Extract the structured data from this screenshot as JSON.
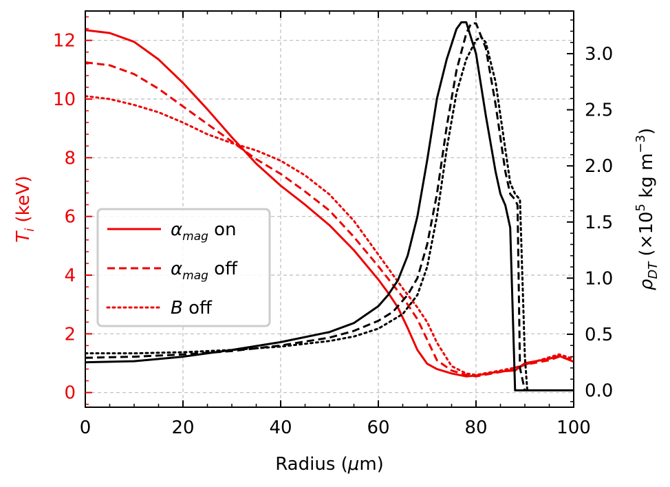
{
  "chart_data": {
    "type": "line",
    "xlabel": "Radius (μm)",
    "xlim": [
      0,
      100
    ],
    "x_ticks": [
      0,
      20,
      40,
      60,
      80,
      100
    ],
    "left_axis": {
      "label": "T_i (keV)",
      "color": "#ee0000",
      "ylim": [
        -0.5,
        13.0
      ],
      "ticks": [
        0,
        2,
        4,
        6,
        8,
        10,
        12
      ]
    },
    "right_axis": {
      "label": "ρ_DT (×10^5 kg m^−3)",
      "color": "#000000",
      "ylim": [
        -0.15,
        3.38
      ],
      "ticks": [
        0.0,
        0.5,
        1.0,
        1.5,
        2.0,
        2.5,
        3.0
      ],
      "tick_labels": [
        "0.0",
        "0.5",
        "1.0",
        "1.5",
        "2.0",
        "2.5",
        "3.0"
      ]
    },
    "grid": true,
    "legend": {
      "position": "center-left",
      "entries": [
        {
          "symbol": "α",
          "sub": "mag",
          "text": "on",
          "style": "solid"
        },
        {
          "symbol": "α",
          "sub": "mag",
          "text": "off",
          "style": "dashed"
        },
        {
          "symbol": "B",
          "sub": "",
          "text": "off",
          "style": "dotted"
        }
      ]
    },
    "series": [
      {
        "name": "T_i α_mag on",
        "axis": "left",
        "color": "#ee0000",
        "style": "solid",
        "x": [
          0,
          5,
          10,
          15,
          20,
          25,
          30,
          35,
          40,
          45,
          50,
          55,
          60,
          62,
          64,
          66,
          68,
          70,
          72,
          75,
          78,
          80,
          85,
          88,
          90,
          95,
          97,
          100
        ],
        "y": [
          12.35,
          12.25,
          11.95,
          11.35,
          10.55,
          9.65,
          8.7,
          7.8,
          7.05,
          6.4,
          5.7,
          4.85,
          3.85,
          3.4,
          2.9,
          2.2,
          1.45,
          0.98,
          0.8,
          0.65,
          0.55,
          0.58,
          0.72,
          0.75,
          1.0,
          1.15,
          1.25,
          1.05
        ]
      },
      {
        "name": "T_i α_mag off",
        "axis": "left",
        "color": "#ee0000",
        "style": "dashed",
        "x": [
          0,
          5,
          10,
          15,
          20,
          25,
          30,
          35,
          40,
          45,
          50,
          55,
          60,
          65,
          68,
          70,
          72,
          75,
          78,
          80,
          85,
          88,
          90,
          95,
          97,
          100
        ],
        "y": [
          11.25,
          11.15,
          10.85,
          10.35,
          9.75,
          9.15,
          8.55,
          7.95,
          7.45,
          6.85,
          6.2,
          5.3,
          4.3,
          3.25,
          2.5,
          1.8,
          1.1,
          0.75,
          0.6,
          0.55,
          0.7,
          0.8,
          0.95,
          1.1,
          1.22,
          1.1
        ]
      },
      {
        "name": "T_i B off",
        "axis": "left",
        "color": "#ee0000",
        "style": "dotted",
        "x": [
          0,
          5,
          10,
          15,
          20,
          25,
          30,
          35,
          40,
          45,
          50,
          55,
          60,
          65,
          68,
          70,
          72,
          75,
          78,
          80,
          85,
          88,
          90,
          95,
          97,
          100
        ],
        "y": [
          10.1,
          10.0,
          9.8,
          9.55,
          9.2,
          8.8,
          8.5,
          8.25,
          7.9,
          7.4,
          6.75,
          5.85,
          4.7,
          3.55,
          2.9,
          2.4,
          1.7,
          0.9,
          0.65,
          0.6,
          0.75,
          0.85,
          0.95,
          1.2,
          1.3,
          1.15
        ]
      },
      {
        "name": "ρ_DT α_mag on",
        "axis": "right",
        "color": "#000000",
        "style": "solid",
        "x": [
          0,
          10,
          20,
          30,
          40,
          50,
          55,
          60,
          62,
          64,
          66,
          68,
          70,
          72,
          74,
          76,
          77,
          78,
          80,
          82,
          84,
          85,
          86,
          87,
          88,
          100
        ],
        "y": [
          0.25,
          0.26,
          0.3,
          0.36,
          0.43,
          0.52,
          0.6,
          0.75,
          0.85,
          0.98,
          1.2,
          1.55,
          2.05,
          2.6,
          2.95,
          3.22,
          3.28,
          3.28,
          3.0,
          2.45,
          1.95,
          1.75,
          1.65,
          1.45,
          0.0,
          0.0
        ]
      },
      {
        "name": "ρ_DT α_mag off",
        "axis": "right",
        "color": "#000000",
        "style": "dashed",
        "x": [
          0,
          10,
          20,
          30,
          40,
          50,
          55,
          60,
          63,
          66,
          68,
          70,
          72,
          74,
          76,
          78,
          79,
          80,
          82,
          84,
          86,
          87,
          88,
          88.5,
          89,
          90,
          100
        ],
        "y": [
          0.29,
          0.3,
          0.32,
          0.35,
          0.4,
          0.47,
          0.53,
          0.62,
          0.7,
          0.85,
          1.0,
          1.3,
          1.75,
          2.35,
          2.85,
          3.18,
          3.27,
          3.27,
          3.05,
          2.55,
          1.95,
          1.75,
          1.7,
          1.65,
          0.2,
          0.0,
          0.0
        ]
      },
      {
        "name": "ρ_DT B off",
        "axis": "right",
        "color": "#000000",
        "style": "dotted",
        "x": [
          0,
          10,
          20,
          30,
          40,
          50,
          55,
          60,
          65,
          68,
          70,
          72,
          74,
          76,
          78,
          80,
          81,
          82,
          84,
          86,
          87,
          88,
          89,
          89.5,
          90,
          90.5,
          91,
          100
        ],
        "y": [
          0.33,
          0.33,
          0.34,
          0.36,
          0.39,
          0.44,
          0.48,
          0.55,
          0.68,
          0.85,
          1.1,
          1.55,
          2.15,
          2.65,
          2.95,
          3.12,
          3.15,
          3.1,
          2.75,
          2.15,
          1.85,
          1.75,
          1.7,
          1.0,
          0.3,
          0.0,
          0.0,
          0.0
        ]
      }
    ]
  }
}
